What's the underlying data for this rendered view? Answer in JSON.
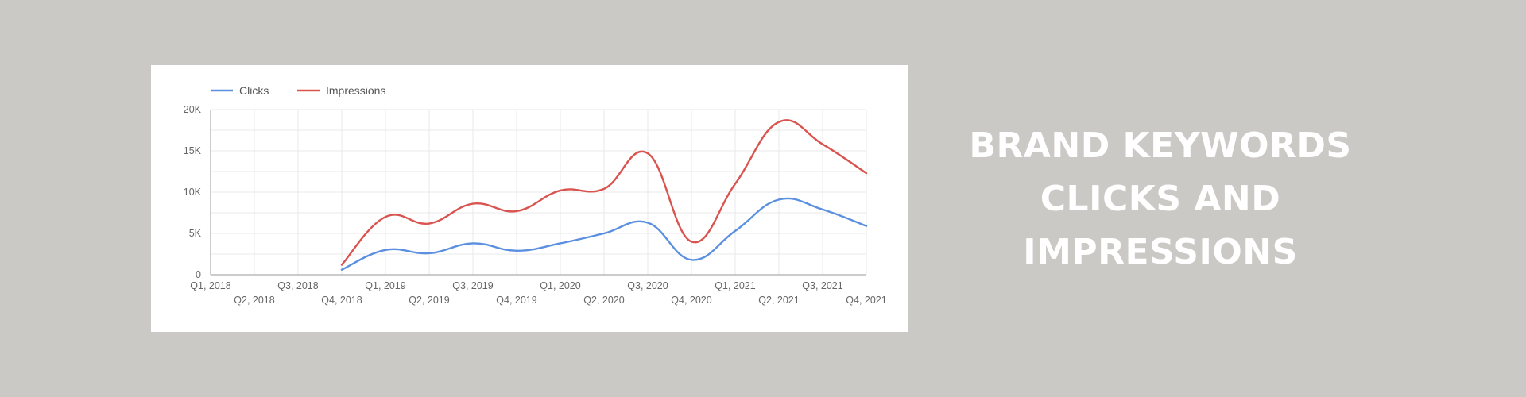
{
  "headline": {
    "lines": [
      "BRAND KEYWORDS",
      "CLICKS AND",
      "IMPRESSIONS"
    ]
  },
  "colors": {
    "background": "#cbc9c5",
    "clicks": "#5b8fe0",
    "impressions": "#d9534f"
  },
  "chart_data": {
    "type": "line",
    "title": "",
    "xlabel": "",
    "ylabel": "",
    "categories": [
      "Q1, 2018",
      "Q2, 2018",
      "Q3, 2018",
      "Q4, 2018",
      "Q1, 2019",
      "Q2, 2019",
      "Q3, 2019",
      "Q4, 2019",
      "Q1, 2020",
      "Q2, 2020",
      "Q3, 2020",
      "Q4, 2020",
      "Q1, 2021",
      "Q2, 2021",
      "Q3, 2021",
      "Q4, 2021"
    ],
    "yticks": [
      0,
      5000,
      10000,
      15000,
      20000
    ],
    "ytick_labels": [
      "0",
      "5K",
      "10K",
      "15K",
      "20K"
    ],
    "ylim": [
      0,
      20000
    ],
    "grid": true,
    "legend_position": "top-left",
    "series": [
      {
        "name": "Clicks",
        "color": "#5b8fe0",
        "values": [
          null,
          null,
          null,
          600,
          3000,
          2600,
          3800,
          2900,
          3800,
          5000,
          6300,
          1800,
          5300,
          9100,
          7900,
          5900
        ]
      },
      {
        "name": "Impressions",
        "color": "#d9534f",
        "values": [
          null,
          null,
          null,
          1200,
          7000,
          6200,
          8600,
          7700,
          10200,
          10400,
          14700,
          4000,
          11000,
          18500,
          15800,
          12300
        ]
      }
    ]
  }
}
